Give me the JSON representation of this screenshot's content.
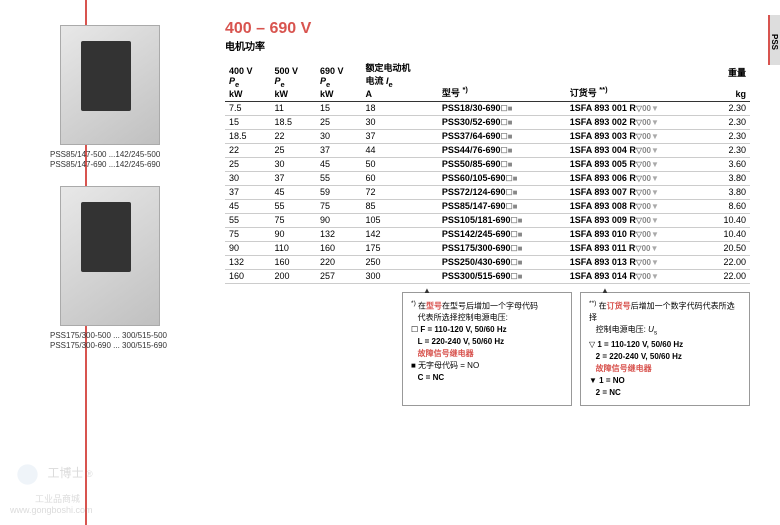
{
  "voltage_title": "400 – 690 V",
  "subtitle": "电机功率",
  "images": [
    {
      "caption1": "PSS85/147-500 ...142/245-500",
      "caption2": "PSS85/147-690 ...142/245-690"
    },
    {
      "caption1": "PSS175/300-500 ... 300/515-500",
      "caption2": "PSS175/300-690 ... 300/515-690"
    }
  ],
  "headers": {
    "c1": "400 V",
    "c1b": "P<sub>e</sub>",
    "c1c": "kW",
    "c2": "500 V",
    "c2b": "P<sub>e</sub>",
    "c2c": "kW",
    "c3": "690 V",
    "c3b": "P<sub>e</sub>",
    "c3c": "kW",
    "c4": "额定电动机",
    "c4b": "电流 I<sub>e</sub>",
    "c4c": "A",
    "c5": "型号",
    "c6": "订货号",
    "c7": "重量",
    "c7c": "kg"
  },
  "rows": [
    [
      "7.5",
      "11",
      "15",
      "18",
      "PSS18/30-690",
      "1SFA 893 001 R",
      "2.30"
    ],
    [
      "15",
      "18.5",
      "25",
      "30",
      "PSS30/52-690",
      "1SFA 893 002 R",
      "2.30"
    ],
    [
      "18.5",
      "22",
      "30",
      "37",
      "PSS37/64-690",
      "1SFA 893 003 R",
      "2.30"
    ],
    [
      "22",
      "25",
      "37",
      "44",
      "PSS44/76-690",
      "1SFA 893 004 R",
      "2.30"
    ],
    [
      "25",
      "30",
      "45",
      "50",
      "PSS50/85-690",
      "1SFA 893 005 R",
      "3.60"
    ],
    [
      "30",
      "37",
      "55",
      "60",
      "PSS60/105-690",
      "1SFA 893 006 R",
      "3.80"
    ],
    [
      "37",
      "45",
      "59",
      "72",
      "PSS72/124-690",
      "1SFA 893 007 R",
      "3.80"
    ],
    [
      "45",
      "55",
      "75",
      "85",
      "PSS85/147-690",
      "1SFA 893 008 R",
      "8.60"
    ],
    [
      "55",
      "75",
      "90",
      "105",
      "PSS105/181-690",
      "1SFA 893 009 R",
      "10.40"
    ],
    [
      "75",
      "90",
      "132",
      "142",
      "PSS142/245-690",
      "1SFA 893 010 R",
      "10.40"
    ],
    [
      "90",
      "110",
      "160",
      "175",
      "PSS175/300-690",
      "1SFA 893 011 R",
      "20.50"
    ],
    [
      "132",
      "160",
      "220",
      "250",
      "PSS250/430-690",
      "1SFA 893 013 R",
      "22.00"
    ],
    [
      "160",
      "200",
      "257",
      "300",
      "PSS300/515-690",
      "1SFA 893 014 R",
      "22.00"
    ]
  ],
  "legend1": {
    "l1": "在型号后增加一个字母代码",
    "l1b": "代表所选择控制电源电压:",
    "l2": "F = 110-120 V,  50/60 Hz",
    "l3": "L = 220-240 V,  50/60 Hz",
    "l4": "故障信号继电器",
    "l5": "无字母代码 = NO",
    "l6": "C = NC"
  },
  "legend2": {
    "l1": "在订货号后增加一个数字代码代表所选择",
    "l1b": "控制电源电压: U<sub>s</sub>",
    "l2": "1 = 110-120 V,  50/60 Hz",
    "l3": "2 = 220-240 V,  50/60 Hz",
    "l4": "故障信号继电器",
    "l5": "1 = NO",
    "l6": "2 = NC"
  },
  "side_tab": "PSS",
  "watermark": {
    "brand": "工博士",
    "sub": "工业品商城",
    "url": "www.gongboshi.com"
  }
}
